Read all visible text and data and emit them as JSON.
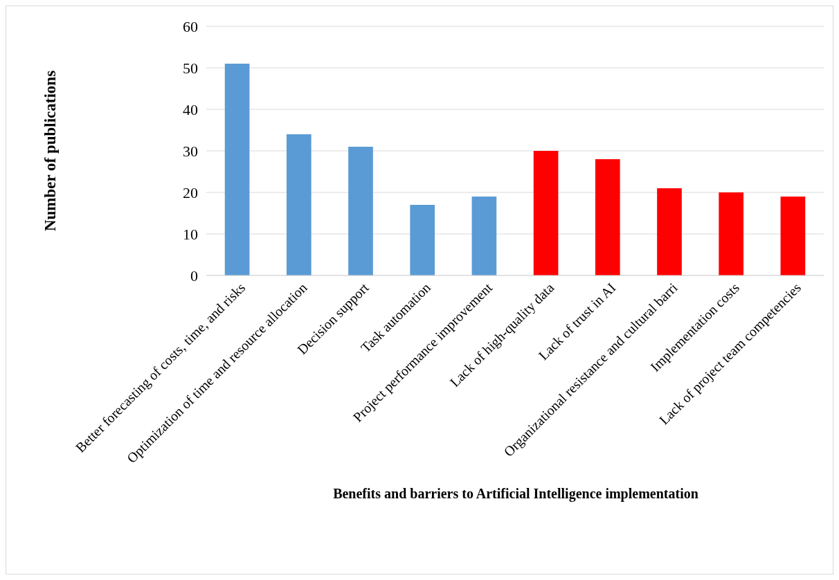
{
  "chart_data": {
    "type": "bar",
    "xlabel": "Benefits and barriers to Artificial Intelligence implementation",
    "ylabel": "Number of publications",
    "categories": [
      "Better forecasting of costs, time, and risks",
      "Optimization of time and resource allocation",
      "Decision support",
      "Task automation",
      "Project performance improvement",
      "Lack of high-quality data",
      "Lack of trust in AI",
      "Organizational resistance and cultural barri",
      "Implementation costs",
      "Lack of project team competencies"
    ],
    "values": [
      51,
      34,
      31,
      17,
      19,
      30,
      28,
      21,
      20,
      19
    ],
    "colors": [
      "#5b9bd5",
      "#5b9bd5",
      "#5b9bd5",
      "#5b9bd5",
      "#5b9bd5",
      "#ff0000",
      "#ff0000",
      "#ff0000",
      "#ff0000",
      "#ff0000"
    ],
    "ylim": [
      0,
      60
    ],
    "yticks": [
      0,
      10,
      20,
      30,
      40,
      50,
      60
    ],
    "grid": "y"
  }
}
